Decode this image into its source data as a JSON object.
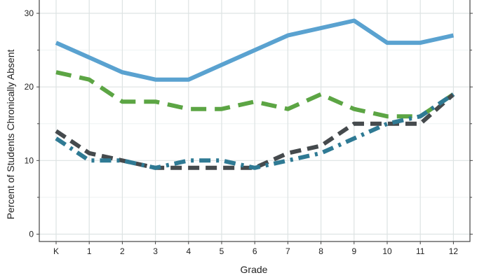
{
  "chart_data": {
    "type": "line",
    "xlabel": "Grade",
    "ylabel": "Percent of Students Chronically Absent",
    "categories": [
      "K",
      "1",
      "2",
      "3",
      "4",
      "5",
      "6",
      "7",
      "8",
      "9",
      "10",
      "11",
      "12"
    ],
    "ylim": [
      -1,
      32
    ],
    "yticks": [
      0,
      10,
      20,
      30
    ],
    "grid": true,
    "series": [
      {
        "values": [
          26,
          24,
          22,
          21,
          21,
          23,
          25,
          27,
          28,
          29,
          26,
          26,
          27
        ],
        "color": "#5aa2d0",
        "style": "solid"
      },
      {
        "values": [
          22,
          21,
          18,
          18,
          17,
          17,
          18,
          17,
          19,
          17,
          16,
          16,
          19
        ],
        "color": "#5ca544",
        "style": "long-dash"
      },
      {
        "values": [
          14,
          11,
          10,
          9,
          9,
          9,
          9,
          11,
          12,
          15,
          15,
          15,
          19
        ],
        "color": "#454a4d",
        "style": "dash"
      },
      {
        "values": [
          13,
          10,
          10,
          9,
          10,
          10,
          9,
          10,
          11,
          13,
          15,
          16,
          19
        ],
        "color": "#2f7a94",
        "style": "dash-dot"
      }
    ]
  }
}
